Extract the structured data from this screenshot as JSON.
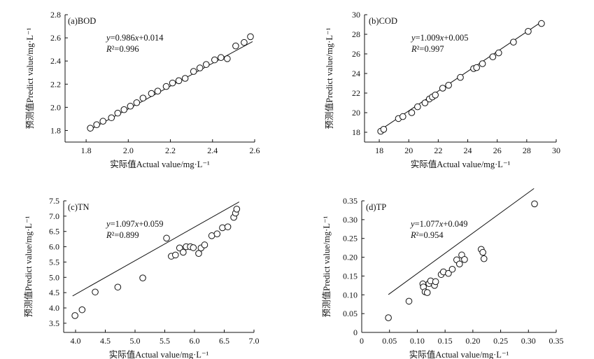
{
  "chart_data": [
    {
      "type": "scatter",
      "panel_label": "(a)BOD",
      "xlabel": "实际值Actual value/mg·L⁻¹",
      "ylabel": "预测值Predict value/mg·L⁻¹",
      "equation": "y=0.986x+0.014",
      "r2": "R²=0.996",
      "fit": {
        "slope": 0.986,
        "intercept": 0.014,
        "x_range": [
          1.81,
          2.59
        ]
      },
      "xlim": [
        1.7,
        2.6
      ],
      "ylim": [
        1.7,
        2.8
      ],
      "xticks": [
        1.8,
        2.0,
        2.2,
        2.4,
        2.6
      ],
      "yticks": [
        1.8,
        2.0,
        2.2,
        2.4,
        2.6,
        2.8
      ],
      "xtick_labels": [
        "1.8",
        "2.0",
        "2.2",
        "2.4",
        "2.6"
      ],
      "ytick_labels": [
        "1.8",
        "2.0",
        "2.2",
        "2.4",
        "2.6",
        "2.8"
      ],
      "x": [
        1.82,
        1.85,
        1.88,
        1.92,
        1.95,
        1.98,
        2.01,
        2.04,
        2.07,
        2.11,
        2.14,
        2.18,
        2.21,
        2.24,
        2.27,
        2.31,
        2.34,
        2.37,
        2.41,
        2.44,
        2.47,
        2.51,
        2.55,
        2.58
      ],
      "y": [
        1.82,
        1.85,
        1.88,
        1.91,
        1.95,
        1.98,
        2.01,
        2.04,
        2.08,
        2.12,
        2.14,
        2.18,
        2.21,
        2.23,
        2.25,
        2.31,
        2.34,
        2.37,
        2.41,
        2.43,
        2.42,
        2.53,
        2.56,
        2.61
      ]
    },
    {
      "type": "scatter",
      "panel_label": "(b)COD",
      "xlabel": "实际值Actual value/mg·L⁻¹",
      "ylabel": "预测值Predict value/mg·L⁻¹",
      "equation": "y=1.009x+0.005",
      "r2": "R²=0.997",
      "fit": {
        "slope": 1.009,
        "intercept": 0.005,
        "x_range": [
          18.0,
          29.0
        ]
      },
      "xlim": [
        17.0,
        30.0
      ],
      "ylim": [
        17.0,
        30.0
      ],
      "xticks": [
        18,
        20,
        22,
        24,
        26,
        28,
        30
      ],
      "yticks": [
        18,
        20,
        22,
        24,
        26,
        28,
        30
      ],
      "xtick_labels": [
        "18",
        "20",
        "22",
        "24",
        "26",
        "28",
        "30"
      ],
      "ytick_labels": [
        "18",
        "20",
        "22",
        "24",
        "26",
        "28",
        "30"
      ],
      "x": [
        18.1,
        18.3,
        19.3,
        19.6,
        20.2,
        20.6,
        21.1,
        21.4,
        21.6,
        21.8,
        22.3,
        22.7,
        23.5,
        24.4,
        24.6,
        25.0,
        25.7,
        26.1,
        27.1,
        28.1,
        29.0
      ],
      "y": [
        18.1,
        18.3,
        19.4,
        19.6,
        20.0,
        20.6,
        21.0,
        21.4,
        21.6,
        21.8,
        22.5,
        22.8,
        23.6,
        24.5,
        24.6,
        25.0,
        25.7,
        26.1,
        27.2,
        28.3,
        29.1
      ]
    },
    {
      "type": "scatter",
      "panel_label": "(c)TN",
      "xlabel": "实际值Actual value/mg·L⁻¹",
      "ylabel": "预测值Predict value/mg·L⁻¹",
      "equation": "y=1.097x+0.059",
      "r2": "R²=0.899",
      "fit": {
        "slope": 1.097,
        "intercept": 0.059,
        "x_range": [
          3.95,
          6.75
        ]
      },
      "xlim": [
        3.8,
        7.0
      ],
      "ylim": [
        3.2,
        7.5
      ],
      "xticks": [
        4.0,
        4.5,
        5.0,
        5.5,
        6.0,
        6.5,
        7.0
      ],
      "yticks": [
        3.5,
        4.0,
        4.5,
        5.0,
        5.5,
        6.0,
        6.5,
        7.0,
        7.5
      ],
      "xtick_labels": [
        "4.0",
        "4.5",
        "5.0",
        "5.5",
        "6.0",
        "6.5",
        "7.0"
      ],
      "ytick_labels": [
        "3.5",
        "4.0",
        "4.5",
        "5.0",
        "5.5",
        "6.0",
        "6.5",
        "7.0",
        "7.5"
      ],
      "x": [
        3.99,
        4.11,
        4.33,
        4.71,
        5.13,
        5.53,
        5.61,
        5.68,
        5.75,
        5.81,
        5.86,
        5.93,
        5.98,
        6.07,
        6.11,
        6.17,
        6.29,
        6.38,
        6.47,
        6.56,
        6.66,
        6.69,
        6.71
      ],
      "y": [
        3.75,
        3.94,
        4.52,
        4.68,
        4.98,
        6.28,
        5.69,
        5.73,
        5.96,
        5.82,
        6.0,
        6.0,
        5.97,
        5.78,
        5.96,
        6.06,
        6.36,
        6.42,
        6.62,
        6.65,
        6.96,
        7.1,
        7.23
      ]
    },
    {
      "type": "scatter",
      "panel_label": "(d)TP",
      "xlabel": "实际值Actual value/mg·L⁻¹",
      "ylabel": "预测值Predict value/mg·L⁻¹",
      "equation": "y=1.077x+0.049",
      "r2": "R²=0.954",
      "fit": {
        "slope": 1.077,
        "intercept": 0.049,
        "x_range": [
          0.048,
          0.31
        ]
      },
      "xlim": [
        0.0,
        0.35
      ],
      "ylim": [
        0.0,
        0.35
      ],
      "xticks": [
        0.0,
        0.05,
        0.1,
        0.15,
        0.2,
        0.25,
        0.3,
        0.35
      ],
      "yticks": [
        0.0,
        0.05,
        0.1,
        0.15,
        0.2,
        0.25,
        0.3,
        0.35
      ],
      "xtick_labels": [
        "0",
        "0.05",
        "0.10",
        "0.15",
        "0.20",
        "0.25",
        "0.30",
        "0.35"
      ],
      "ytick_labels": [
        "0",
        "0.05",
        "0.10",
        "0.15",
        "0.20",
        "0.25",
        "0.30",
        "0.35"
      ],
      "x": [
        0.048,
        0.085,
        0.11,
        0.111,
        0.114,
        0.118,
        0.121,
        0.124,
        0.131,
        0.133,
        0.143,
        0.147,
        0.156,
        0.163,
        0.171,
        0.176,
        0.18,
        0.185,
        0.215,
        0.218,
        0.22,
        0.311
      ],
      "y": [
        0.039,
        0.083,
        0.129,
        0.121,
        0.108,
        0.106,
        0.13,
        0.137,
        0.125,
        0.135,
        0.154,
        0.161,
        0.157,
        0.168,
        0.193,
        0.182,
        0.206,
        0.194,
        0.221,
        0.213,
        0.196,
        0.342
      ]
    }
  ]
}
